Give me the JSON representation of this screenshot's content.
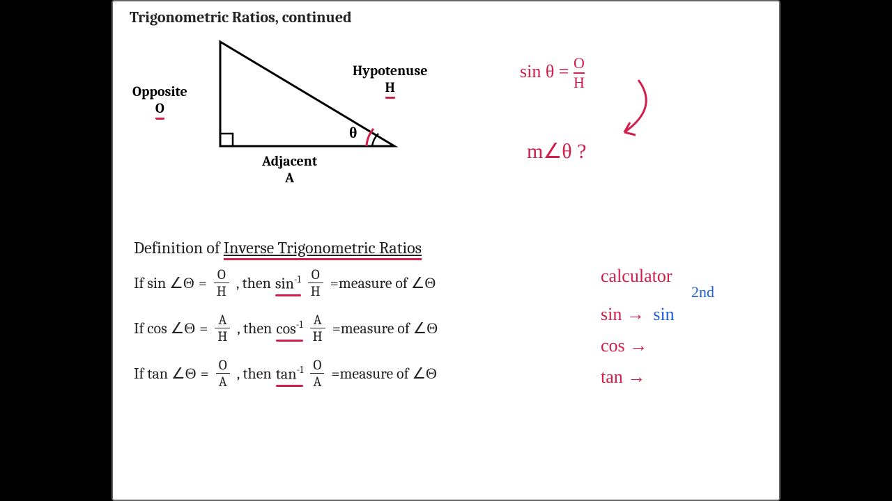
{
  "title": "Trigonometric Ratios, continued",
  "triangle": {
    "opposite_label": "Opposite",
    "opposite_letter": "O",
    "hypotenuse_label": "Hypotenuse",
    "hypotenuse_letter": "H",
    "adjacent_label": "Adjacent",
    "adjacent_letter": "A",
    "theta": "θ",
    "stroke_color": "#000000",
    "stroke_width": 3
  },
  "handwriting_right_top": {
    "sin_line_prefix": "sin θ =",
    "sin_num": "O",
    "sin_den": "H",
    "angle_line": "m∠θ ?",
    "ink_color": "#d21e4a"
  },
  "definitions": {
    "heading_prefix": "Definition of ",
    "heading_ul": "Inverse Trigonometric Ratios",
    "lines": [
      {
        "if": "If sin ∠Θ",
        "num": "O",
        "den": "H",
        "inv": "sin",
        "sup": "-1",
        "result": "=measure of ∠Θ"
      },
      {
        "if": "If cos ∠Θ",
        "num": "A",
        "den": "H",
        "inv": "cos",
        "sup": "-1",
        "result": "=measure of ∠Θ"
      },
      {
        "if": "If tan ∠Θ",
        "num": "O",
        "den": "A",
        "inv": "tan",
        "sup": "-1",
        "result": "=measure of ∠Θ"
      }
    ]
  },
  "handwriting_right_bottom": {
    "calculator": "calculator",
    "second": "2nd",
    "sin": "sin",
    "sin_target": "sin",
    "cos": "cos",
    "tan": "tan",
    "arrow": "→"
  },
  "colors": {
    "red": "#d21e4a",
    "blue": "#1f5fd8",
    "black": "#222222",
    "background": "#ffffff",
    "frame": "#000000"
  }
}
